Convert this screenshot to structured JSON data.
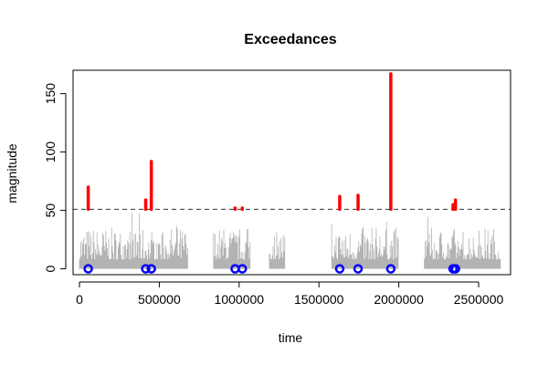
{
  "chart_data": {
    "type": "scatter",
    "title": "Exceedances",
    "xlabel": "time",
    "ylabel": "magnitude",
    "xlim": [
      -40000,
      2700000
    ],
    "ylim": [
      -5,
      170
    ],
    "x_ticks": [
      0,
      500000,
      1000000,
      1500000,
      2000000,
      2500000
    ],
    "x_tick_labels": [
      "0",
      "500000",
      "1000000",
      "1500000",
      "2000000",
      "2500000"
    ],
    "y_ticks": [
      0,
      50,
      100,
      150
    ],
    "y_tick_labels": [
      "0",
      "50",
      "100",
      "150"
    ],
    "threshold": 51,
    "segments": [
      [
        0,
        680000
      ],
      [
        840000,
        1070000
      ],
      [
        1190000,
        1290000
      ],
      [
        1580000,
        2000000
      ],
      [
        2160000,
        2640000
      ]
    ],
    "exceedances": [
      {
        "x": 55000,
        "y": 70
      },
      {
        "x": 415000,
        "y": 59
      },
      {
        "x": 450000,
        "y": 92
      },
      {
        "x": 975000,
        "y": 52
      },
      {
        "x": 1020000,
        "y": 52
      },
      {
        "x": 1630000,
        "y": 62
      },
      {
        "x": 1745000,
        "y": 63
      },
      {
        "x": 1950000,
        "y": 167
      },
      {
        "x": 2340000,
        "y": 55
      },
      {
        "x": 2355000,
        "y": 59
      }
    ],
    "colors": {
      "background_series": "#b3b3b3",
      "exceedance_bar": "#ff0000",
      "exceedance_point": "#0000ff",
      "threshold_line": "#333333"
    },
    "grid": false
  }
}
